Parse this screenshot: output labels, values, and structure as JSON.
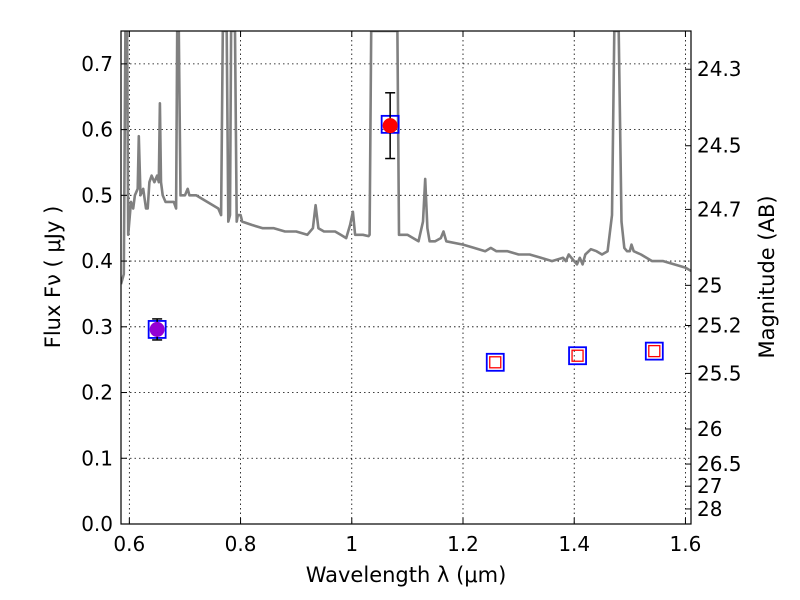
{
  "chart_data": {
    "type": "scatter",
    "title": "",
    "xlabel": "Wavelength  λ (μm)",
    "ylabel": "Flux  Fν  ( μJy )",
    "y2label": "Magnitude (AB)",
    "xlim": [
      0.585,
      1.61
    ],
    "ylim": [
      0.0,
      0.75
    ],
    "grid": true,
    "x_ticks": [
      0.6,
      0.8,
      1.0,
      1.2,
      1.4,
      1.6
    ],
    "x_tick_labels": [
      "0.6",
      "0.8",
      "1",
      "1.2",
      "1.4",
      "1.6"
    ],
    "y_ticks": [
      0.0,
      0.1,
      0.2,
      0.3,
      0.4,
      0.5,
      0.6,
      0.7
    ],
    "y_tick_labels": [
      "0.0",
      "0.1",
      "0.2",
      "0.3",
      "0.4",
      "0.5",
      "0.6",
      "0.7"
    ],
    "y2_ticks": [
      {
        "label": "24.3",
        "mag": 24.3
      },
      {
        "label": "24.5",
        "mag": 24.5
      },
      {
        "label": "24.7",
        "mag": 24.7
      },
      {
        "label": "25",
        "mag": 25.0
      },
      {
        "label": "25.2",
        "mag": 25.2
      },
      {
        "label": "25.5",
        "mag": 25.5
      },
      {
        "label": "26",
        "mag": 26.0
      },
      {
        "label": "26.5",
        "mag": 26.5
      },
      {
        "label": "27",
        "mag": 27.0
      },
      {
        "label": "28",
        "mag": 28.0
      }
    ],
    "model_spectrum": {
      "color": "#808080",
      "points": [
        [
          0.585,
          0.365
        ],
        [
          0.59,
          0.38
        ],
        [
          0.593,
          0.75
        ],
        [
          0.596,
          0.75
        ],
        [
          0.598,
          0.44
        ],
        [
          0.6,
          0.46
        ],
        [
          0.603,
          0.49
        ],
        [
          0.607,
          0.48
        ],
        [
          0.61,
          0.5
        ],
        [
          0.615,
          0.51
        ],
        [
          0.617,
          0.59
        ],
        [
          0.62,
          0.5
        ],
        [
          0.625,
          0.51
        ],
        [
          0.63,
          0.48
        ],
        [
          0.633,
          0.48
        ],
        [
          0.636,
          0.52
        ],
        [
          0.64,
          0.53
        ],
        [
          0.645,
          0.52
        ],
        [
          0.65,
          0.53
        ],
        [
          0.653,
          0.52
        ],
        [
          0.655,
          0.64
        ],
        [
          0.657,
          0.52
        ],
        [
          0.66,
          0.5
        ],
        [
          0.665,
          0.49
        ],
        [
          0.67,
          0.49
        ],
        [
          0.68,
          0.49
        ],
        [
          0.684,
          0.48
        ],
        [
          0.686,
          0.75
        ],
        [
          0.689,
          0.75
        ],
        [
          0.692,
          0.5
        ],
        [
          0.7,
          0.5
        ],
        [
          0.705,
          0.51
        ],
        [
          0.708,
          0.5
        ],
        [
          0.72,
          0.5
        ],
        [
          0.74,
          0.49
        ],
        [
          0.76,
          0.48
        ],
        [
          0.765,
          0.47
        ],
        [
          0.768,
          0.75
        ],
        [
          0.775,
          0.75
        ],
        [
          0.778,
          0.46
        ],
        [
          0.781,
          0.47
        ],
        [
          0.783,
          0.75
        ],
        [
          0.79,
          0.75
        ],
        [
          0.793,
          0.46
        ],
        [
          0.795,
          0.47
        ],
        [
          0.8,
          0.47
        ],
        [
          0.803,
          0.46
        ],
        [
          0.82,
          0.455
        ],
        [
          0.84,
          0.45
        ],
        [
          0.86,
          0.45
        ],
        [
          0.88,
          0.445
        ],
        [
          0.9,
          0.445
        ],
        [
          0.92,
          0.44
        ],
        [
          0.93,
          0.45
        ],
        [
          0.935,
          0.485
        ],
        [
          0.94,
          0.45
        ],
        [
          0.95,
          0.445
        ],
        [
          0.96,
          0.445
        ],
        [
          0.97,
          0.445
        ],
        [
          0.98,
          0.44
        ],
        [
          0.99,
          0.435
        ],
        [
          0.997,
          0.455
        ],
        [
          1.002,
          0.475
        ],
        [
          1.006,
          0.44
        ],
        [
          1.02,
          0.44
        ],
        [
          1.03,
          0.438
        ],
        [
          1.032,
          0.44
        ],
        [
          1.035,
          0.75
        ],
        [
          1.04,
          0.75
        ],
        [
          1.07,
          0.75
        ],
        [
          1.082,
          0.75
        ],
        [
          1.085,
          0.44
        ],
        [
          1.1,
          0.44
        ],
        [
          1.12,
          0.43
        ],
        [
          1.128,
          0.46
        ],
        [
          1.132,
          0.525
        ],
        [
          1.136,
          0.45
        ],
        [
          1.14,
          0.43
        ],
        [
          1.15,
          0.43
        ],
        [
          1.16,
          0.435
        ],
        [
          1.165,
          0.445
        ],
        [
          1.17,
          0.43
        ],
        [
          1.2,
          0.425
        ],
        [
          1.22,
          0.42
        ],
        [
          1.24,
          0.415
        ],
        [
          1.25,
          0.42
        ],
        [
          1.26,
          0.415
        ],
        [
          1.28,
          0.415
        ],
        [
          1.3,
          0.41
        ],
        [
          1.32,
          0.41
        ],
        [
          1.34,
          0.405
        ],
        [
          1.36,
          0.4
        ],
        [
          1.38,
          0.405
        ],
        [
          1.385,
          0.4
        ],
        [
          1.39,
          0.41
        ],
        [
          1.395,
          0.405
        ],
        [
          1.4,
          0.4
        ],
        [
          1.405,
          0.395
        ],
        [
          1.41,
          0.405
        ],
        [
          1.415,
          0.395
        ],
        [
          1.42,
          0.41
        ],
        [
          1.43,
          0.418
        ],
        [
          1.44,
          0.415
        ],
        [
          1.45,
          0.41
        ],
        [
          1.46,
          0.415
        ],
        [
          1.468,
          0.47
        ],
        [
          1.472,
          0.75
        ],
        [
          1.48,
          0.75
        ],
        [
          1.485,
          0.46
        ],
        [
          1.49,
          0.42
        ],
        [
          1.495,
          0.415
        ],
        [
          1.5,
          0.415
        ],
        [
          1.503,
          0.425
        ],
        [
          1.507,
          0.415
        ],
        [
          1.52,
          0.41
        ],
        [
          1.54,
          0.4
        ],
        [
          1.56,
          0.4
        ],
        [
          1.58,
          0.395
        ],
        [
          1.6,
          0.39
        ],
        [
          1.61,
          0.385
        ]
      ]
    },
    "model_photometry": [
      {
        "x": 0.65,
        "y": 0.296,
        "color": "#0000ff"
      },
      {
        "x": 1.069,
        "y": 0.608,
        "color": "#0000ff"
      },
      {
        "x": 1.258,
        "y": 0.246,
        "color": "#0000ff"
      },
      {
        "x": 1.406,
        "y": 0.256,
        "color": "#0000ff"
      },
      {
        "x": 1.544,
        "y": 0.263,
        "color": "#0000ff"
      }
    ],
    "detections": [
      {
        "x": 0.65,
        "y": 0.296,
        "yerr": 0.016,
        "color": "#9400d3"
      },
      {
        "x": 1.069,
        "y": 0.606,
        "yerr": 0.05,
        "color": "#ff0000"
      }
    ],
    "upper_limits": [
      {
        "x": 1.258,
        "y": 0.246,
        "color": "#ff0000"
      },
      {
        "x": 1.406,
        "y": 0.256,
        "color": "#ff0000"
      },
      {
        "x": 1.544,
        "y": 0.263,
        "color": "#ff0000"
      }
    ]
  }
}
